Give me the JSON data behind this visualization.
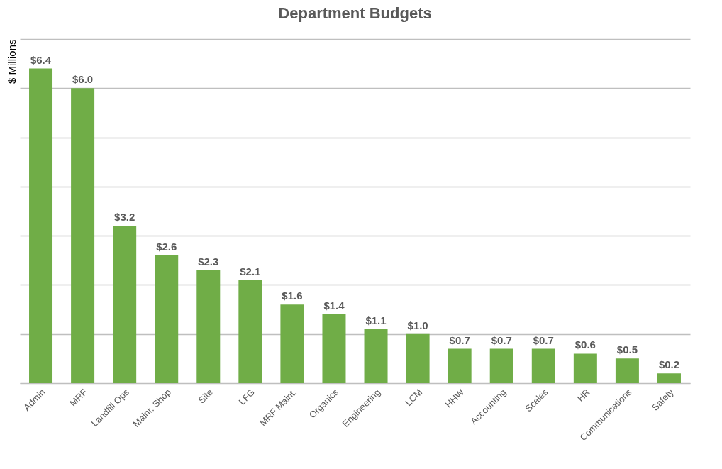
{
  "chart_data": {
    "type": "bar",
    "title": "Department Budgets",
    "ylabel": "$ Millions",
    "categories": [
      "Admin",
      "MRF",
      "Landfill Ops",
      "Maint. Shop",
      "Site",
      "LFG",
      "MRF Maint.",
      "Organics",
      "Engineering",
      "LCM",
      "HHW",
      "Accounting",
      "Scales",
      "HR",
      "Communications",
      "Safety"
    ],
    "values": [
      6.4,
      6.0,
      3.2,
      2.6,
      2.3,
      2.1,
      1.6,
      1.4,
      1.1,
      1.0,
      0.7,
      0.7,
      0.7,
      0.6,
      0.5,
      0.2
    ],
    "value_labels": [
      "$6.4",
      "$6.0",
      "$3.2",
      "$2.6",
      "$2.3",
      "$2.1",
      "$1.6",
      "$1.4",
      "$1.1",
      "$1.0",
      "$0.7",
      "$0.7",
      "$0.7",
      "$0.6",
      "$0.5",
      "$0.2"
    ],
    "color": "#70ad47",
    "ylim": [
      0,
      7
    ],
    "yticks": [
      {
        "value": 0,
        "label": null
      },
      {
        "value": 1,
        "label": null
      },
      {
        "value": 2,
        "label": null
      },
      {
        "value": 3,
        "label": null
      },
      {
        "value": 4,
        "label": null
      },
      {
        "value": 5,
        "label": null
      },
      {
        "value": 6,
        "label": null
      },
      {
        "value": 7,
        "label": null
      }
    ],
    "grid": "y",
    "tick_labels": "x"
  }
}
